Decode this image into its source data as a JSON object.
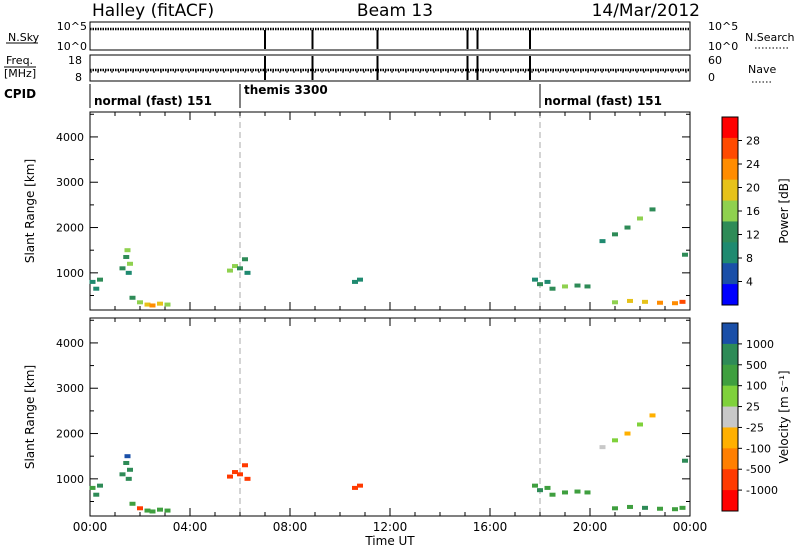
{
  "header": {
    "station": "Halley (fitACF)",
    "beam": "Beam 13",
    "date": "14/Mar/2012"
  },
  "status_panels": {
    "nsky_label": "N.Sky",
    "nsky_ticks": [
      "10^5",
      "10^0"
    ],
    "nsearch_label": "N.Search",
    "nsearch_ticks": [
      "10^5",
      "10^0"
    ],
    "freq_label_1": "Freq.",
    "freq_label_2": "[MHz]",
    "freq_ticks": [
      "18",
      "8"
    ],
    "nave_label": "Nave",
    "nave_ticks": [
      "60",
      "0"
    ],
    "cpid_label": "CPID",
    "cpid_modes": [
      {
        "name": "normal (fast) 151",
        "start_hour": 0,
        "end_hour": 6
      },
      {
        "name": "themis 3300",
        "start_hour": 6,
        "end_hour": 18
      },
      {
        "name": "normal (fast) 151",
        "start_hour": 18,
        "end_hour": 24
      }
    ],
    "gaps_hours": [
      7.0,
      8.9,
      11.5,
      15.1,
      15.5,
      17.6
    ]
  },
  "chart_data": [
    {
      "type": "scatter",
      "title": "Power",
      "ylabel": "Slant Range [km]",
      "colorbar_label": "Power [dB]",
      "colorbar_ticks": [
        "28",
        "24",
        "20",
        "16",
        "12",
        "8",
        "4"
      ],
      "colorbar_colors": [
        "#ff0000",
        "#ff4a00",
        "#ff8c00",
        "#e6c21a",
        "#8fd14f",
        "#2e8b57",
        "#1f8a70",
        "#1a4fa8",
        "#0000ff"
      ],
      "ylim": [
        180,
        4550
      ],
      "yticks": [
        "1000",
        "2000",
        "3000",
        "4000"
      ],
      "xlim": [
        0,
        24
      ],
      "points": [
        {
          "x": 0.1,
          "y": 800,
          "v": 8
        },
        {
          "x": 0.25,
          "y": 650,
          "v": 6
        },
        {
          "x": 0.4,
          "y": 850,
          "v": 10
        },
        {
          "x": 1.3,
          "y": 1100,
          "v": 12
        },
        {
          "x": 1.45,
          "y": 1350,
          "v": 10
        },
        {
          "x": 1.5,
          "y": 1500,
          "v": 14
        },
        {
          "x": 1.55,
          "y": 1000,
          "v": 8
        },
        {
          "x": 1.6,
          "y": 1200,
          "v": 16
        },
        {
          "x": 1.7,
          "y": 450,
          "v": 12
        },
        {
          "x": 2.0,
          "y": 350,
          "v": 16
        },
        {
          "x": 2.3,
          "y": 300,
          "v": 20
        },
        {
          "x": 2.5,
          "y": 280,
          "v": 24
        },
        {
          "x": 2.8,
          "y": 320,
          "v": 18
        },
        {
          "x": 3.1,
          "y": 300,
          "v": 14
        },
        {
          "x": 5.6,
          "y": 1050,
          "v": 14
        },
        {
          "x": 5.8,
          "y": 1150,
          "v": 16
        },
        {
          "x": 6.0,
          "y": 1100,
          "v": 12
        },
        {
          "x": 6.2,
          "y": 1300,
          "v": 10
        },
        {
          "x": 6.3,
          "y": 1000,
          "v": 8
        },
        {
          "x": 10.6,
          "y": 800,
          "v": 6
        },
        {
          "x": 10.8,
          "y": 850,
          "v": 8
        },
        {
          "x": 17.8,
          "y": 850,
          "v": 8
        },
        {
          "x": 18.0,
          "y": 750,
          "v": 10
        },
        {
          "x": 18.3,
          "y": 800,
          "v": 6
        },
        {
          "x": 18.5,
          "y": 650,
          "v": 12
        },
        {
          "x": 19.0,
          "y": 700,
          "v": 14
        },
        {
          "x": 19.5,
          "y": 720,
          "v": 12
        },
        {
          "x": 19.9,
          "y": 700,
          "v": 10
        },
        {
          "x": 21.0,
          "y": 350,
          "v": 16
        },
        {
          "x": 21.6,
          "y": 380,
          "v": 20
        },
        {
          "x": 22.2,
          "y": 360,
          "v": 18
        },
        {
          "x": 22.8,
          "y": 340,
          "v": 22
        },
        {
          "x": 23.4,
          "y": 330,
          "v": 24
        },
        {
          "x": 23.7,
          "y": 360,
          "v": 28
        },
        {
          "x": 20.5,
          "y": 1700,
          "v": 8
        },
        {
          "x": 21.0,
          "y": 1850,
          "v": 10
        },
        {
          "x": 21.5,
          "y": 2000,
          "v": 12
        },
        {
          "x": 22.0,
          "y": 2200,
          "v": 14
        },
        {
          "x": 22.5,
          "y": 2400,
          "v": 10
        },
        {
          "x": 23.8,
          "y": 1400,
          "v": 12
        }
      ]
    },
    {
      "type": "scatter",
      "title": "Velocity",
      "ylabel": "Slant Range [km]",
      "colorbar_label": "Velocity [m s⁻¹]",
      "colorbar_ticks": [
        "1000",
        "500",
        "100",
        "25",
        "-25",
        "-100",
        "-500",
        "-1000"
      ],
      "colorbar_colors": [
        "#1a4fa8",
        "#2e8b57",
        "#3f9f3f",
        "#7fd13b",
        "#c8c8c8",
        "#ffb000",
        "#ff7f00",
        "#ff3a00",
        "#ff0000"
      ],
      "ylim": [
        180,
        4550
      ],
      "yticks": [
        "1000",
        "2000",
        "3000",
        "4000"
      ],
      "xlim": [
        0,
        24
      ],
      "xticks": [
        "00:00",
        "04:00",
        "08:00",
        "12:00",
        "16:00",
        "20:00",
        "00:00"
      ],
      "xlabel": "Time UT",
      "points": [
        {
          "x": 0.1,
          "y": 800,
          "v": 50
        },
        {
          "x": 0.25,
          "y": 650,
          "v": 200
        },
        {
          "x": 0.4,
          "y": 850,
          "v": 80
        },
        {
          "x": 1.3,
          "y": 1100,
          "v": 120
        },
        {
          "x": 1.45,
          "y": 1350,
          "v": 300
        },
        {
          "x": 1.5,
          "y": 1500,
          "v": 600
        },
        {
          "x": 1.55,
          "y": 1000,
          "v": 100
        },
        {
          "x": 1.6,
          "y": 1200,
          "v": 200
        },
        {
          "x": 1.7,
          "y": 450,
          "v": 60
        },
        {
          "x": 2.0,
          "y": 350,
          "v": -80
        },
        {
          "x": 2.3,
          "y": 300,
          "v": 40
        },
        {
          "x": 2.5,
          "y": 280,
          "v": 70
        },
        {
          "x": 2.8,
          "y": 320,
          "v": 30
        },
        {
          "x": 3.1,
          "y": 300,
          "v": 50
        },
        {
          "x": 5.6,
          "y": 1050,
          "v": -300
        },
        {
          "x": 5.8,
          "y": 1150,
          "v": -200
        },
        {
          "x": 6.0,
          "y": 1100,
          "v": -400
        },
        {
          "x": 6.2,
          "y": 1300,
          "v": -150
        },
        {
          "x": 6.3,
          "y": 1000,
          "v": -250
        },
        {
          "x": 10.6,
          "y": 800,
          "v": -200
        },
        {
          "x": 10.8,
          "y": 850,
          "v": -120
        },
        {
          "x": 17.8,
          "y": 850,
          "v": 60
        },
        {
          "x": 18.0,
          "y": 750,
          "v": 80
        },
        {
          "x": 18.3,
          "y": 800,
          "v": 50
        },
        {
          "x": 18.5,
          "y": 650,
          "v": 40
        },
        {
          "x": 19.0,
          "y": 700,
          "v": 30
        },
        {
          "x": 19.5,
          "y": 720,
          "v": 60
        },
        {
          "x": 19.9,
          "y": 700,
          "v": 20
        },
        {
          "x": 21.0,
          "y": 350,
          "v": 60
        },
        {
          "x": 21.6,
          "y": 380,
          "v": 40
        },
        {
          "x": 22.2,
          "y": 360,
          "v": 80
        },
        {
          "x": 22.8,
          "y": 340,
          "v": 50
        },
        {
          "x": 23.4,
          "y": 330,
          "v": 30
        },
        {
          "x": 23.7,
          "y": 360,
          "v": 70
        },
        {
          "x": 20.5,
          "y": 1700,
          "v": 0
        },
        {
          "x": 21.0,
          "y": 1850,
          "v": 10
        },
        {
          "x": 21.5,
          "y": 2000,
          "v": -10
        },
        {
          "x": 22.0,
          "y": 2200,
          "v": 5
        },
        {
          "x": 22.5,
          "y": 2400,
          "v": -5
        },
        {
          "x": 23.8,
          "y": 1400,
          "v": 400
        }
      ]
    }
  ]
}
